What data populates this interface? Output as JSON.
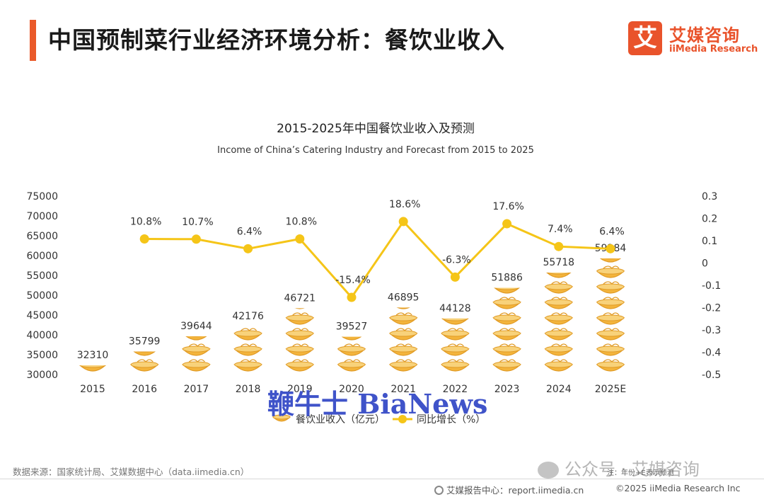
{
  "header": {
    "title": "中国预制菜行业经济环境分析：餐饮业收入",
    "logo_mark": "艾",
    "logo_cn": "艾媒咨询",
    "logo_en": "iiMedia Research"
  },
  "chart_data": {
    "type": "bar",
    "title": "2015-2025年中国餐饮业收入及预测",
    "subtitle": "Income of China’s Catering Industry and Forecast from 2015 to 2025",
    "categories": [
      "2015",
      "2016",
      "2017",
      "2018",
      "2019",
      "2020",
      "2021",
      "2022",
      "2023",
      "2024",
      "2025E"
    ],
    "series": [
      {
        "name": "餐饮业收入（亿元）",
        "type": "bar",
        "axis": "left",
        "values": [
          32310,
          35799,
          39644,
          42176,
          46721,
          39527,
          46895,
          44128,
          51886,
          55718,
          59284
        ],
        "labels": [
          "32310",
          "35799",
          "39644",
          "42176",
          "46721",
          "39527",
          "46895",
          "44128",
          "51886",
          "55718",
          "59284"
        ]
      },
      {
        "name": "同比增长（%）",
        "type": "line",
        "axis": "right",
        "values": [
          null,
          0.108,
          0.107,
          0.064,
          0.108,
          -0.154,
          0.186,
          -0.063,
          0.176,
          0.074,
          0.064
        ],
        "labels": [
          "",
          "10.8%",
          "10.7%",
          "6.4%",
          "10.8%",
          "-15.4%",
          "18.6%",
          "-6.3%",
          "17.6%",
          "7.4%",
          "6.4%"
        ]
      }
    ],
    "ylim_left": [
      30000,
      75000
    ],
    "yticks_left": [
      "30000",
      "35000",
      "40000",
      "45000",
      "50000",
      "55000",
      "60000",
      "65000",
      "70000",
      "75000"
    ],
    "ylim_right": [
      -0.5,
      0.3
    ],
    "yticks_right": [
      "-0.5",
      "-0.4",
      "-0.3",
      "-0.2",
      "-0.1",
      "0",
      "0.1",
      "0.2",
      "0.3"
    ],
    "legend_position": "bottom-center",
    "grid": false,
    "colors": {
      "bar": "#f3b43c",
      "bar_stroke": "#e09a24",
      "line": "#f5c518"
    }
  },
  "footer": {
    "source": "数据来源：国家统计局、艾媒数据中心（data.iimedia.cn）",
    "note": "注：年份+E表示预测",
    "wechat": "公众号 · 艾媒咨询",
    "center": "艾媒报告中心：report.iimedia.cn",
    "right": "©2025  iiMedia Research  Inc"
  },
  "watermark": "鞭牛士 BiaNews"
}
